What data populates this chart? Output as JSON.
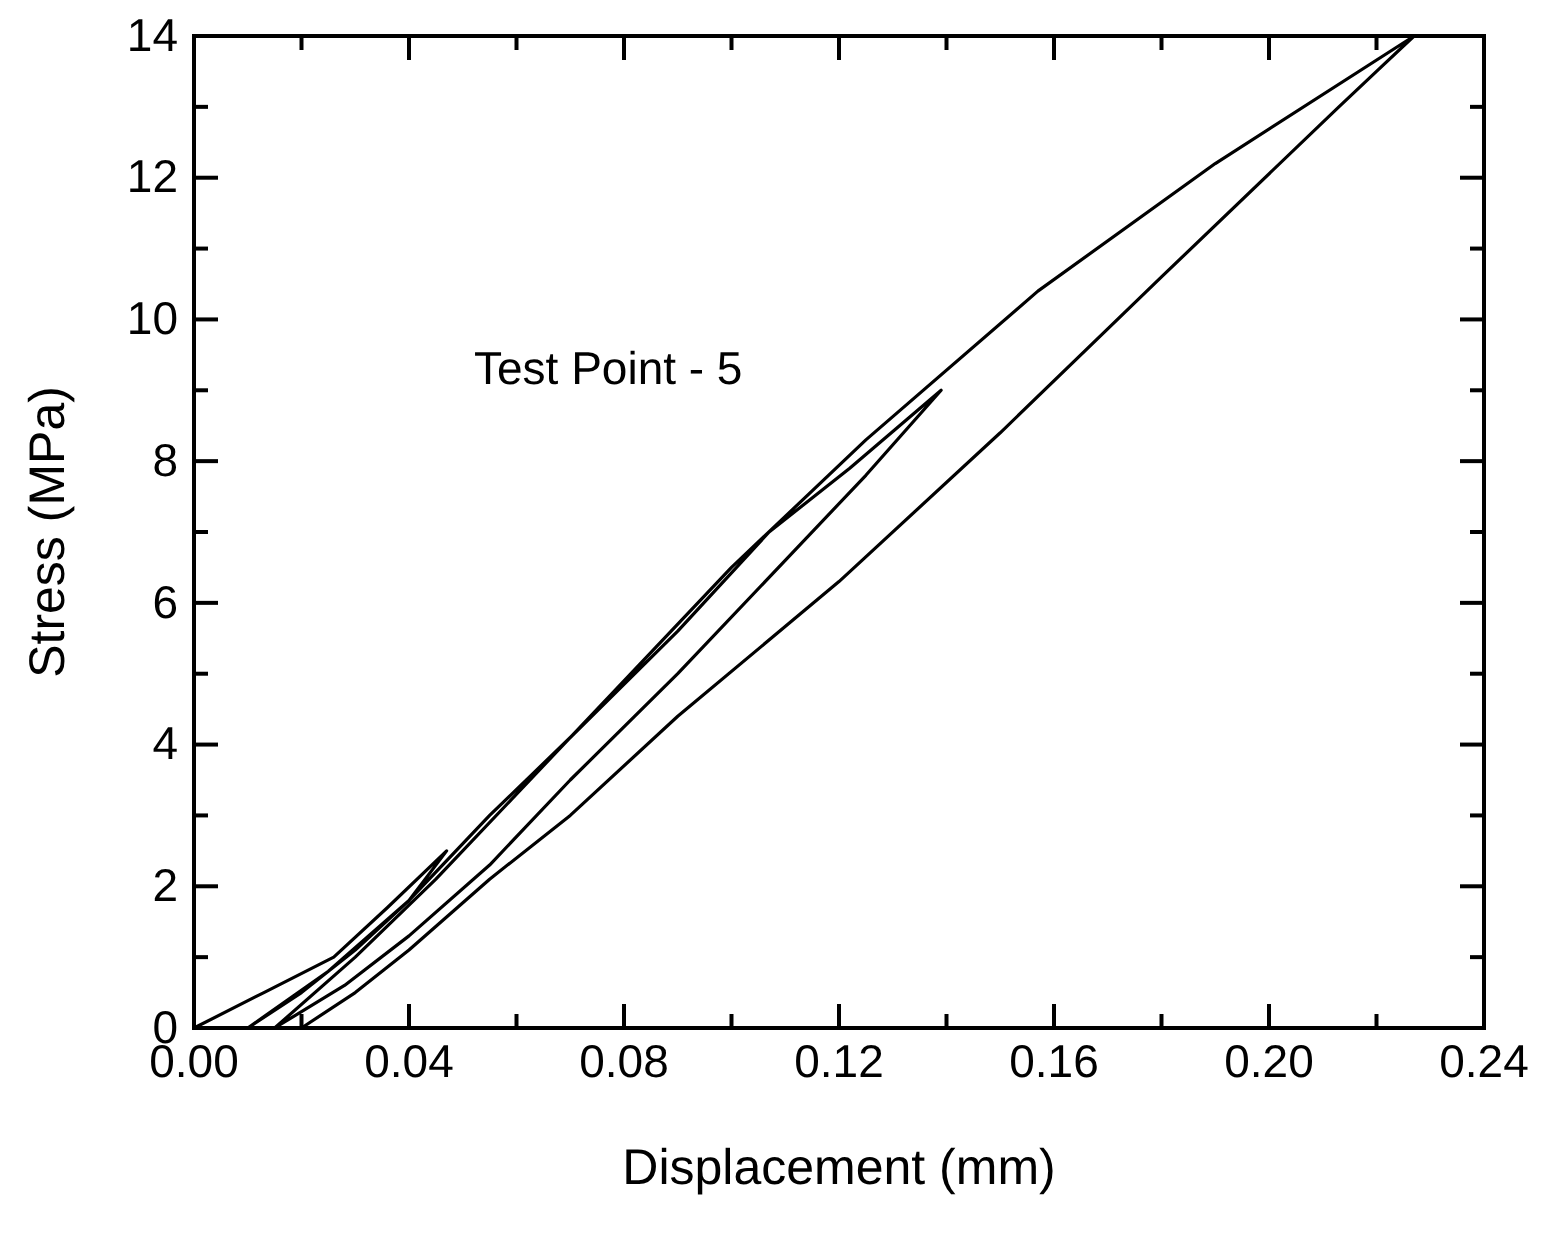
{
  "chart_data": {
    "type": "line",
    "xlabel": "Displacement (mm)",
    "ylabel": "Stress (MPa)",
    "annotations": [
      "Test Point - 5"
    ],
    "x": [
      0,
      0.013,
      0.026,
      0.036,
      0.047,
      0.04,
      0.03,
      0.02,
      0.01,
      0.025,
      0.04,
      0.055,
      0.07,
      0.09,
      0.107,
      0.122,
      0.139,
      0.125,
      0.11,
      0.09,
      0.07,
      0.055,
      0.04,
      0.028,
      0.015,
      0.03,
      0.045,
      0.06,
      0.08,
      0.1,
      0.125,
      0.157,
      0.19,
      0.227,
      0.22,
      0.213,
      0.18,
      0.15,
      0.12,
      0.09,
      0.07,
      0.055,
      0.04,
      0.03,
      0.02
    ],
    "series": [
      {
        "color": "#000000",
        "values": [
          0,
          0.5,
          1.0,
          1.7,
          2.5,
          1.8,
          1.1,
          0.5,
          0,
          0.8,
          1.8,
          3.0,
          4.1,
          5.6,
          7.0,
          7.9,
          9,
          7.8,
          6.6,
          5.0,
          3.5,
          2.3,
          1.3,
          0.6,
          0,
          1.0,
          2.1,
          3.3,
          4.9,
          6.5,
          8.3,
          10.4,
          12.2,
          14,
          13.5,
          13.0,
          10.6,
          8.4,
          6.3,
          4.4,
          3.0,
          2.1,
          1.1,
          0.5,
          0
        ]
      }
    ],
    "xlim": [
      0,
      0.24
    ],
    "ylim": [
      0,
      14
    ],
    "xticks": [
      {
        "value": 0,
        "label": "0.00"
      },
      {
        "value": 0.02,
        "label": null
      },
      {
        "value": 0.04,
        "label": "0.04"
      },
      {
        "value": 0.06,
        "label": null
      },
      {
        "value": 0.08,
        "label": "0.08"
      },
      {
        "value": 0.1,
        "label": null
      },
      {
        "value": 0.12,
        "label": "0.12"
      },
      {
        "value": 0.14,
        "label": null
      },
      {
        "value": 0.16,
        "label": "0.16"
      },
      {
        "value": 0.18,
        "label": null
      },
      {
        "value": 0.2,
        "label": "0.20"
      },
      {
        "value": 0.22,
        "label": null
      },
      {
        "value": 0.24,
        "label": "0.24"
      }
    ],
    "yticks": [
      0,
      {
        "value": 1,
        "label": null
      },
      2,
      {
        "value": 3,
        "label": null
      },
      4,
      {
        "value": 5,
        "label": null
      },
      6,
      {
        "value": 7,
        "label": null
      },
      8,
      {
        "value": 9,
        "label": null
      },
      10,
      {
        "value": 11,
        "label": null
      },
      12,
      {
        "value": 13,
        "label": null
      },
      14
    ],
    "marker": "none",
    "line_style": "solid"
  }
}
